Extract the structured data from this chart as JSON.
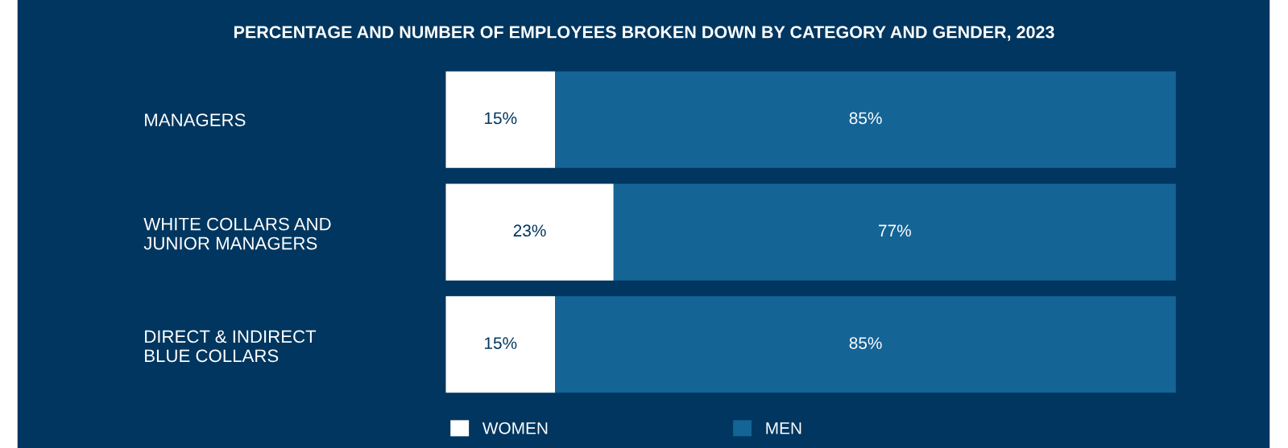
{
  "chart_data": {
    "type": "bar",
    "orientation": "horizontal",
    "stacked": true,
    "title": "PERCENTAGE AND NUMBER OF EMPLOYEES BROKEN DOWN BY CATEGORY AND GENDER, 2023",
    "categories": [
      "MANAGERS",
      "WHITE COLLARS AND\nJUNIOR MANAGERS",
      "DIRECT & INDIRECT\nBLUE COLLARS"
    ],
    "series": [
      {
        "name": "WOMEN",
        "color": "#ffffff",
        "values": [
          15,
          23,
          15
        ],
        "value_labels": [
          "15%",
          "23%",
          "15%"
        ]
      },
      {
        "name": "MEN",
        "color": "#156496",
        "values": [
          85,
          77,
          85
        ],
        "value_labels": [
          "85%",
          "77%",
          "85%"
        ]
      }
    ],
    "tick_labels": "y",
    "grid": false,
    "legend": "bottom"
  }
}
